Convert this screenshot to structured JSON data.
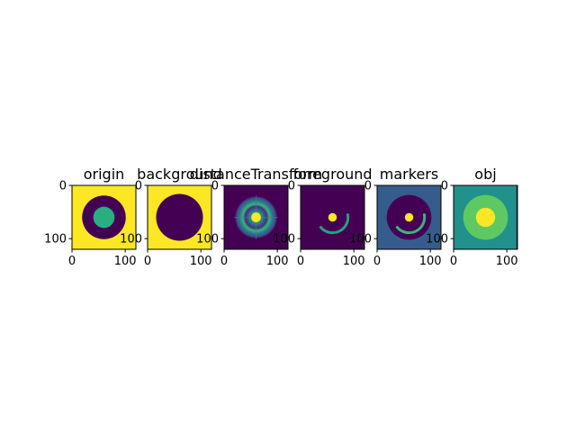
{
  "chart_data": [
    {
      "type": "heatmap",
      "title": "origin",
      "scene": "origin",
      "shape": [
        120,
        120
      ],
      "xlim": [
        0,
        120
      ],
      "ylim": [
        120,
        0
      ],
      "xticks": [
        0,
        100
      ],
      "yticks": [
        0,
        100
      ],
      "xticklabels": [
        "0",
        "100"
      ],
      "yticklabels": [
        "0",
        "100"
      ],
      "colormap": "viridis",
      "colors": {
        "background": "#fde725",
        "ring": "#440154",
        "core": "#28ae80"
      },
      "geometry": {
        "center": [
          60,
          60
        ],
        "outer_radius": 41,
        "inner_radius": 20
      }
    },
    {
      "type": "heatmap",
      "title": "background",
      "scene": "background",
      "shape": [
        120,
        120
      ],
      "xlim": [
        0,
        120
      ],
      "ylim": [
        120,
        0
      ],
      "xticks": [
        0,
        100
      ],
      "yticks": [
        0,
        100
      ],
      "xticklabels": [
        "0",
        "100"
      ],
      "yticklabels": [
        "0",
        "100"
      ],
      "colormap": "viridis",
      "colors": {
        "background": "#fde725",
        "object": "#440154"
      },
      "geometry": {
        "center": [
          60,
          60
        ],
        "radius": 44
      }
    },
    {
      "type": "heatmap",
      "title": "distanceTransform",
      "scene": "distance",
      "shape": [
        120,
        120
      ],
      "xlim": [
        0,
        120
      ],
      "ylim": [
        120,
        0
      ],
      "xticks": [
        0,
        100
      ],
      "yticks": [
        0,
        100
      ],
      "xticklabels": [
        "0",
        "100"
      ],
      "yticklabels": [
        "0",
        "100"
      ],
      "colormap": "viridis",
      "colors": {
        "low": "#440154",
        "mid": "#21918c",
        "high": "#fde725"
      },
      "geometry": {
        "center": [
          60,
          60
        ],
        "outer_radius": 41,
        "inner_radius": 20
      }
    },
    {
      "type": "heatmap",
      "title": "foreground",
      "scene": "foreground",
      "shape": [
        120,
        120
      ],
      "xlim": [
        0,
        120
      ],
      "ylim": [
        120,
        0
      ],
      "xticks": [
        0,
        100
      ],
      "yticks": [
        0,
        100
      ],
      "xticklabels": [
        "0",
        "100"
      ],
      "yticklabels": [
        "0",
        "100"
      ],
      "colormap": "viridis",
      "colors": {
        "background": "#440154",
        "spot": "#fde725",
        "arc": "#26a07e"
      },
      "geometry": {
        "center": [
          60,
          60
        ],
        "spot_radius": 8,
        "arc_radius": 29
      }
    },
    {
      "type": "heatmap",
      "title": "markers",
      "scene": "markers",
      "shape": [
        120,
        120
      ],
      "xlim": [
        0,
        120
      ],
      "ylim": [
        120,
        0
      ],
      "xticks": [
        0,
        100
      ],
      "yticks": [
        0,
        100
      ],
      "xticklabels": [
        "0",
        "100"
      ],
      "yticklabels": [
        "0",
        "100"
      ],
      "colormap": "viridis",
      "colors": {
        "background": "#365c8d",
        "object": "#440154",
        "spot": "#fde725",
        "arc": "#35b779"
      },
      "geometry": {
        "center": [
          60,
          60
        ],
        "radius": 42,
        "spot_radius": 8,
        "arc_radius": 29
      }
    },
    {
      "type": "heatmap",
      "title": "obj",
      "scene": "obj",
      "shape": [
        120,
        120
      ],
      "xlim": [
        0,
        120
      ],
      "ylim": [
        120,
        0
      ],
      "xticks": [
        0,
        100
      ],
      "yticks": [
        0,
        100
      ],
      "xticklabels": [
        "0",
        "100"
      ],
      "yticklabels": [
        "0",
        "100"
      ],
      "colormap": "viridis",
      "colors": {
        "background": "#21918c",
        "ring": "#5ec962",
        "core": "#fde725",
        "edge": "#440154"
      },
      "geometry": {
        "center": [
          60,
          60
        ],
        "outer_radius": 42,
        "inner_radius": 18
      }
    }
  ]
}
